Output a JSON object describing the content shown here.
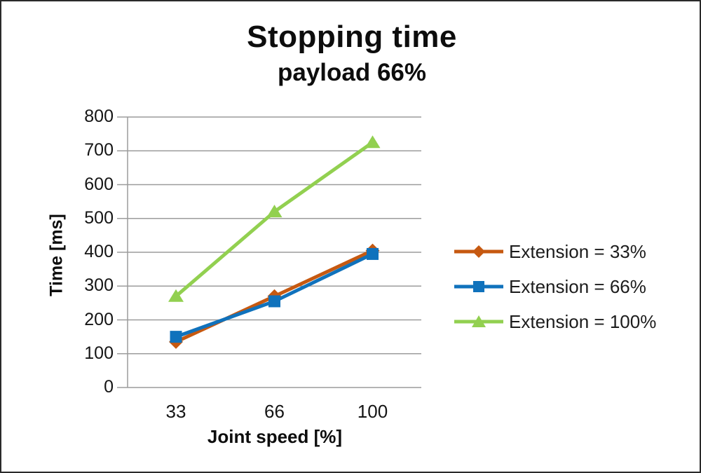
{
  "chart_data": {
    "type": "line",
    "title": "Stopping time",
    "subtitle": "payload 66%",
    "xlabel": "Joint speed [%]",
    "ylabel": "Time [ms]",
    "categories": [
      "33",
      "66",
      "100"
    ],
    "series": [
      {
        "name": "Extension = 33%",
        "color": "#C65911",
        "marker": "diamond",
        "values": [
          135,
          270,
          405
        ]
      },
      {
        "name": "Extension = 66%",
        "color": "#1072BC",
        "marker": "square",
        "values": [
          150,
          255,
          395
        ]
      },
      {
        "name": "Extension = 100%",
        "color": "#92D050",
        "marker": "triangle",
        "values": [
          270,
          520,
          725
        ]
      }
    ],
    "ylim": [
      0,
      800
    ],
    "ytick_step": 100,
    "ytick_labels": [
      "0",
      "100",
      "200",
      "300",
      "400",
      "500",
      "600",
      "700",
      "800"
    ],
    "grid": true,
    "legend_position": "right",
    "gridline_color": "#9C9C9C",
    "axis_color": "#9C9C9C",
    "background": "#FFFFFF"
  }
}
